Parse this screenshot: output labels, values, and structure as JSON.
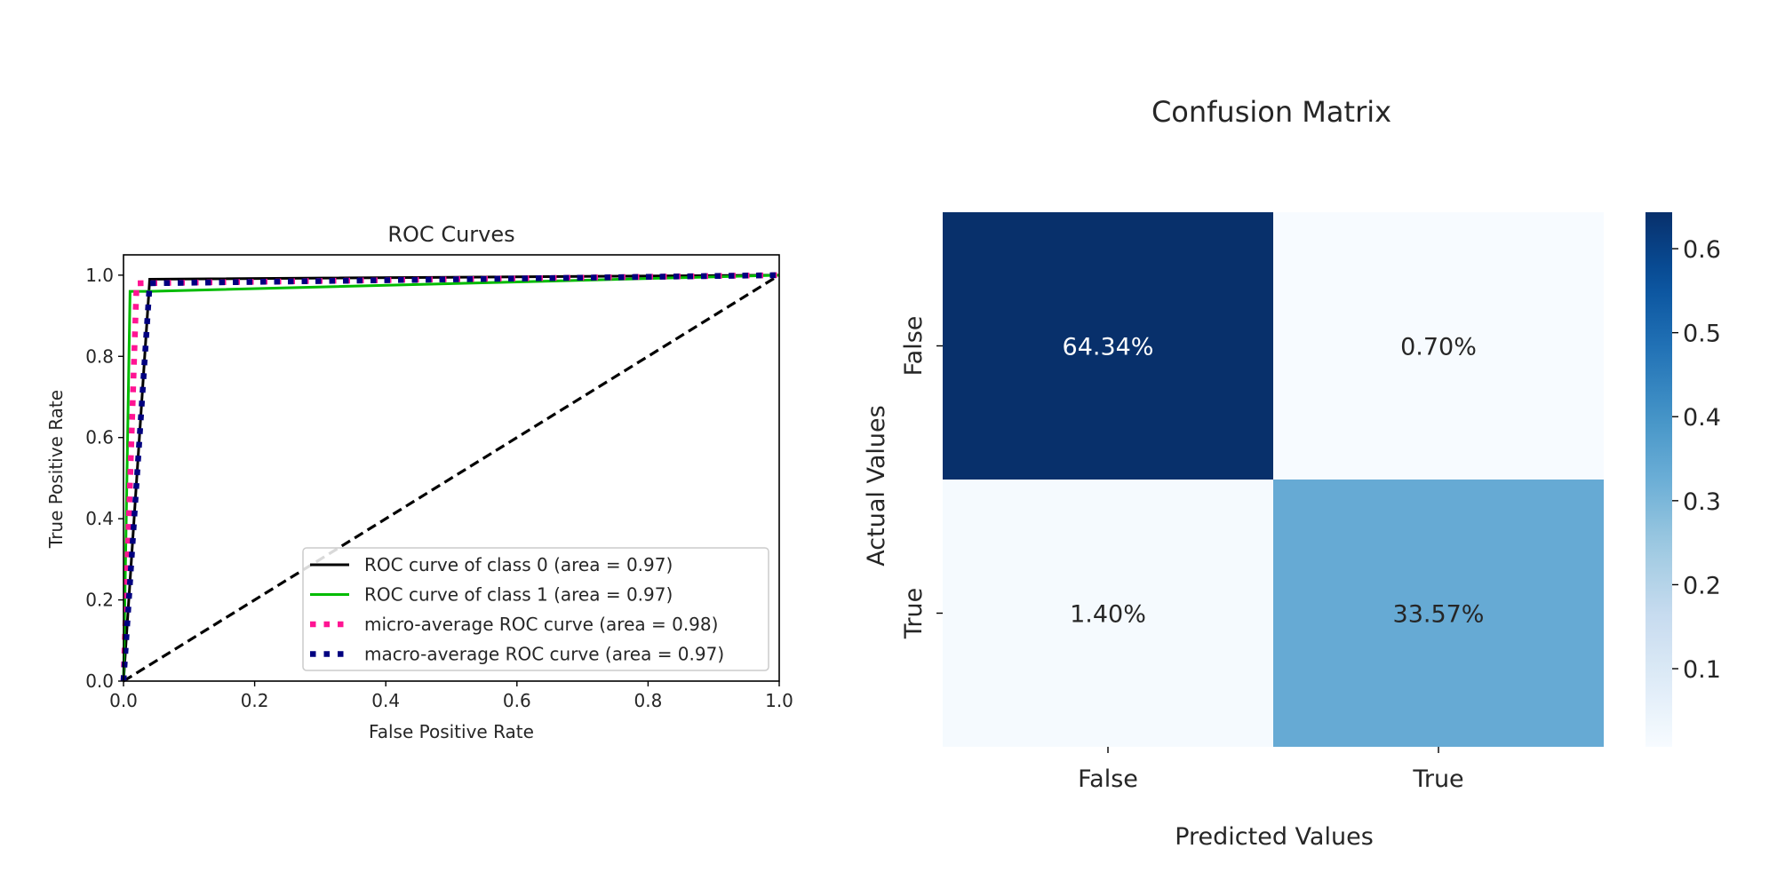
{
  "chart_data": [
    {
      "type": "line",
      "title": "ROC Curves",
      "xlabel": "False Positive Rate",
      "ylabel": "True Positive Rate",
      "xlim": [
        0.0,
        1.0
      ],
      "ylim": [
        0.0,
        1.05
      ],
      "xticks": [
        "0.0",
        "0.2",
        "0.4",
        "0.6",
        "0.8",
        "1.0"
      ],
      "yticks": [
        "0.0",
        "0.2",
        "0.4",
        "0.6",
        "0.8",
        "1.0"
      ],
      "grid": false,
      "legend_position": "lower-right",
      "series": [
        {
          "name": "ROC curve of class 0 (area = 0.97)",
          "color": "#000000",
          "style": "solid",
          "x": [
            0.0,
            0.04,
            1.0
          ],
          "y": [
            0.0,
            0.99,
            1.0
          ]
        },
        {
          "name": "ROC curve of class 1 (area = 0.97)",
          "color": "#00bb00",
          "style": "solid",
          "x": [
            0.0,
            0.01,
            0.04,
            1.0
          ],
          "y": [
            0.0,
            0.96,
            0.96,
            1.0
          ]
        },
        {
          "name": "micro-average ROC curve (area = 0.98)",
          "color": "#ff1493",
          "style": "dotted",
          "x": [
            0.0,
            0.02,
            1.0
          ],
          "y": [
            0.0,
            0.98,
            1.0
          ]
        },
        {
          "name": "macro-average ROC curve (area = 0.97)",
          "color": "#000080",
          "style": "dotted",
          "x": [
            0.0,
            0.04,
            1.0
          ],
          "y": [
            0.0,
            0.98,
            1.0
          ]
        }
      ],
      "diagonal": {
        "color": "#000000",
        "style": "dashed",
        "x": [
          0.0,
          1.0
        ],
        "y": [
          0.0,
          1.0
        ]
      }
    },
    {
      "type": "heatmap",
      "title": "Confusion Matrix",
      "xlabel": "Predicted Values",
      "ylabel": "Actual Values",
      "x_categories": [
        "False",
        "True"
      ],
      "y_categories": [
        "False",
        "True"
      ],
      "values": [
        [
          0.6434,
          0.007
        ],
        [
          0.014,
          0.3357
        ]
      ],
      "annotations": [
        [
          "64.34%",
          "0.70%"
        ],
        [
          "1.40%",
          "33.57%"
        ]
      ],
      "colormap": "Blues",
      "colorbar": {
        "min": 0.007,
        "max": 0.6434,
        "ticks": [
          0.1,
          0.2,
          0.3,
          0.4,
          0.5,
          0.6
        ],
        "tick_labels": [
          "0.1",
          "0.2",
          "0.3",
          "0.4",
          "0.5",
          "0.6"
        ]
      }
    }
  ]
}
